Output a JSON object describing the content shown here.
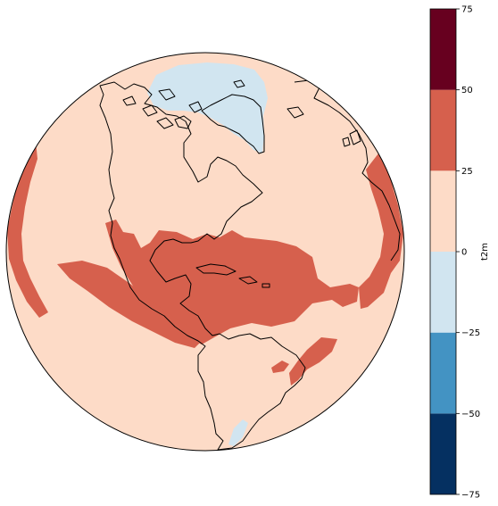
{
  "map": {
    "projection": "orthographic",
    "variable": "t2m",
    "colormap": "RdBu_r",
    "ocean_color": "#fddbc7",
    "coastline_color": "#000000"
  },
  "regions": [
    {
      "name": "arctic-greenland-cold",
      "color": "#d1e5f0"
    },
    {
      "name": "caribbean-gulf-warm",
      "color": "#d6604d"
    },
    {
      "name": "pacific-east-warm",
      "color": "#d6604d"
    },
    {
      "name": "atlantic-east-warm",
      "color": "#d6604d"
    },
    {
      "name": "pacific-west-warm",
      "color": "#d6604d"
    }
  ],
  "colorbar": {
    "label": "t2m",
    "ticks": [
      "75",
      "50",
      "25",
      "0",
      "−25",
      "−50",
      "−75"
    ],
    "levels": [
      -75,
      -50,
      -25,
      0,
      25,
      50,
      75
    ],
    "colors": [
      "#053061",
      "#4393c3",
      "#d1e5f0",
      "#fddbc7",
      "#d6604d",
      "#67001f"
    ]
  }
}
